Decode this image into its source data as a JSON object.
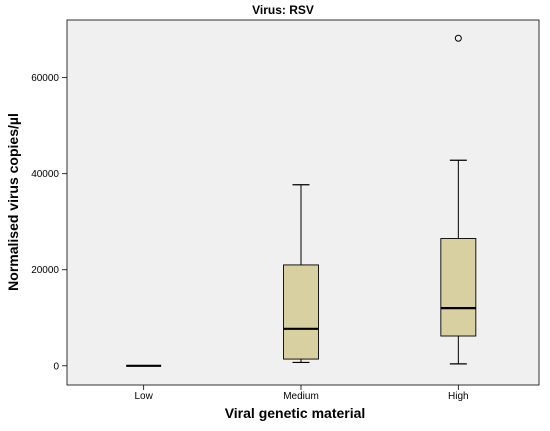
{
  "chart_data": {
    "type": "boxplot",
    "title": "Virus: RSV",
    "xlabel": "Viral genetic material",
    "ylabel": "Normalised virus copies/µl",
    "ylim": [
      -4000,
      72000
    ],
    "yticks": [
      0,
      20000,
      40000,
      60000
    ],
    "ytick_labels": [
      "0",
      "20000",
      "40000",
      "60000"
    ],
    "categories": [
      "Low",
      "Medium",
      "High"
    ],
    "boxes": [
      {
        "category": "Low",
        "min": 0,
        "q1": 0,
        "median": 0,
        "q3": 0,
        "max": 0,
        "outliers": []
      },
      {
        "category": "Medium",
        "min": 700,
        "q1": 1400,
        "median": 7700,
        "q3": 21000,
        "max": 37700,
        "outliers": []
      },
      {
        "category": "High",
        "min": 400,
        "q1": 6200,
        "median": 12000,
        "q3": 26500,
        "max": 42800,
        "outliers": [
          68200
        ]
      }
    ],
    "grid": false,
    "colors": {
      "box_fill": "#d8d0a0",
      "plot_bg": "#f0f0f0",
      "stroke": "#000000"
    }
  }
}
